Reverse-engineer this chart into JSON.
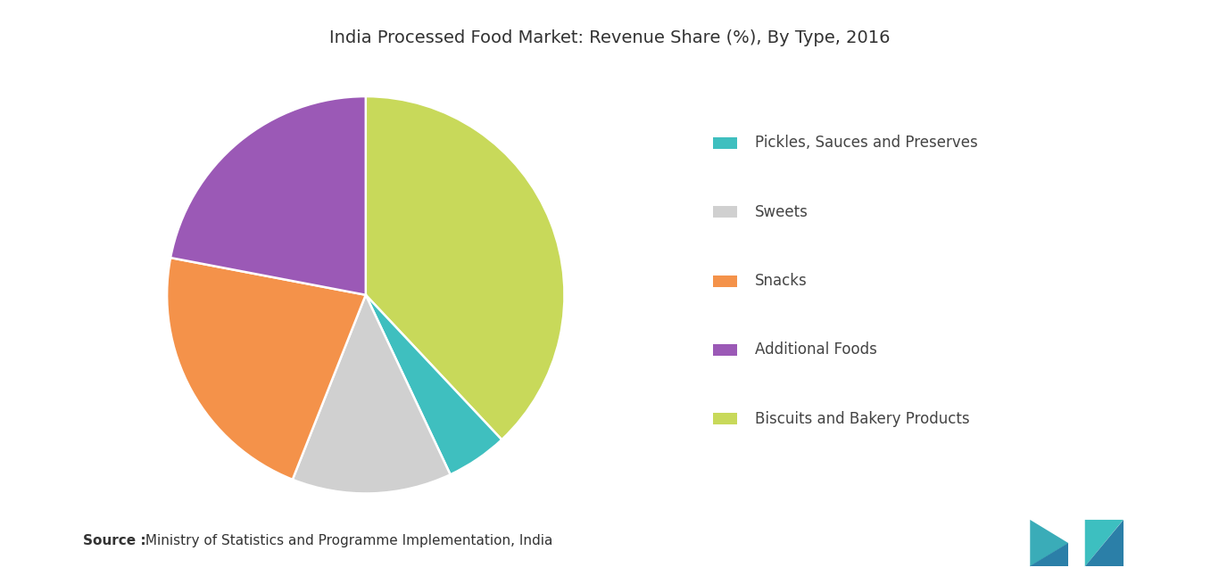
{
  "title": "India Processed Food Market: Revenue Share (%), By Type, 2016",
  "slices": [
    {
      "label": "Biscuits and Bakery Products",
      "value": 38,
      "color": "#C8D95A"
    },
    {
      "label": "Pickles, Sauces and Preserves",
      "value": 5,
      "color": "#3FBFBF"
    },
    {
      "label": "Sweets",
      "value": 13,
      "color": "#D0D0D0"
    },
    {
      "label": "Snacks",
      "value": 22,
      "color": "#F4924A"
    },
    {
      "label": "Additional Foods",
      "value": 22,
      "color": "#9B59B6"
    }
  ],
  "legend_order": [
    {
      "label": "Pickles, Sauces and Preserves",
      "color": "#3FBFBF"
    },
    {
      "label": "Sweets",
      "color": "#D0D0D0"
    },
    {
      "label": "Snacks",
      "color": "#F4924A"
    },
    {
      "label": "Additional Foods",
      "color": "#9B59B6"
    },
    {
      "label": "Biscuits and Bakery Products",
      "color": "#C8D95A"
    }
  ],
  "source_bold": "Source :",
  "source_text": " Ministry of Statistics and Programme Implementation, India",
  "title_fontsize": 14,
  "legend_fontsize": 12,
  "source_fontsize": 11,
  "background_color": "#ffffff",
  "startangle": 90,
  "logo_colors": [
    "#3AACB8",
    "#2B7FA8",
    "#3DBFC0",
    "#2B7FA8"
  ]
}
